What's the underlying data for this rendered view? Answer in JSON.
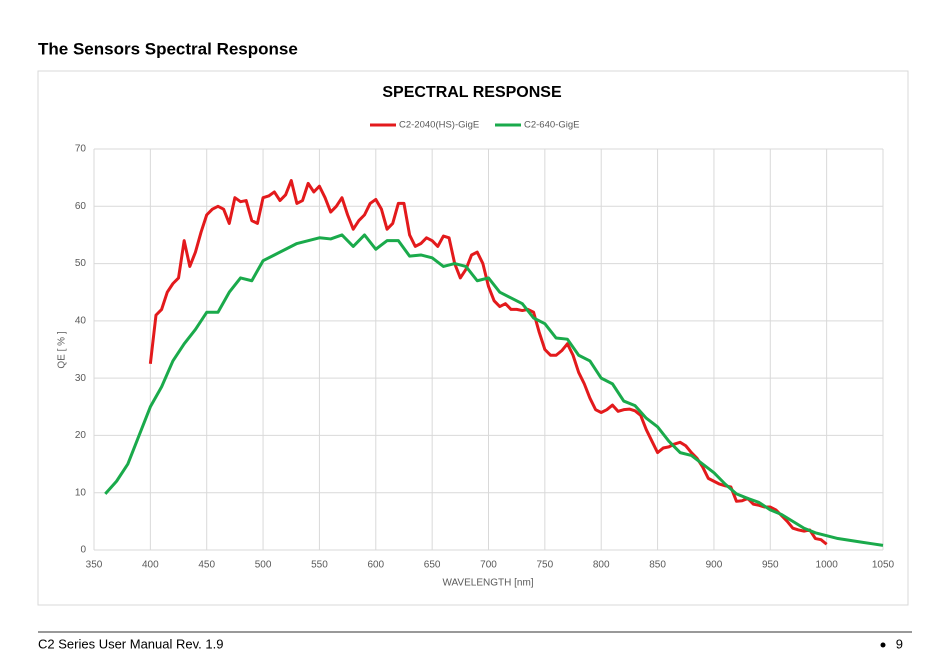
{
  "header": {
    "title": "The Sensors Spectral Response"
  },
  "chart_data": {
    "type": "line",
    "title": "SPECTRAL RESPONSE",
    "x_label": "WAVELENGTH [nm]",
    "y_label": "QE [ % ]",
    "xlim": [
      350,
      1050
    ],
    "xticks": [
      350,
      400,
      450,
      500,
      550,
      600,
      650,
      700,
      750,
      800,
      850,
      900,
      950,
      1000,
      1050
    ],
    "ylim": [
      0,
      70
    ],
    "yticks": [
      0,
      10,
      20,
      30,
      40,
      50,
      60,
      70
    ],
    "grid": true,
    "legend": "top",
    "series": [
      {
        "name": "C2-2040(HS)-GigE",
        "color": "#e31a1c",
        "x": [
          400,
          405,
          410,
          415,
          420,
          425,
          430,
          435,
          440,
          445,
          450,
          455,
          460,
          465,
          470,
          475,
          480,
          485,
          490,
          495,
          500,
          505,
          510,
          515,
          520,
          525,
          530,
          535,
          540,
          545,
          550,
          555,
          560,
          565,
          570,
          575,
          580,
          585,
          590,
          595,
          600,
          605,
          610,
          615,
          620,
          625,
          630,
          635,
          640,
          645,
          650,
          655,
          660,
          665,
          670,
          675,
          680,
          685,
          690,
          695,
          700,
          705,
          710,
          715,
          720,
          725,
          730,
          735,
          740,
          745,
          750,
          755,
          760,
          765,
          770,
          775,
          780,
          785,
          790,
          795,
          800,
          805,
          810,
          815,
          820,
          825,
          830,
          835,
          840,
          845,
          850,
          855,
          860,
          865,
          870,
          875,
          880,
          885,
          890,
          895,
          900,
          905,
          910,
          915,
          920,
          925,
          930,
          935,
          940,
          945,
          950,
          955,
          960,
          965,
          970,
          975,
          980,
          985,
          990,
          995,
          1000
        ],
        "values": [
          32.5,
          41,
          42,
          45,
          46.5,
          47.5,
          54,
          49.5,
          52,
          55.5,
          58.5,
          59.5,
          60,
          59.5,
          57,
          61.5,
          60.8,
          61,
          57.5,
          57,
          61.5,
          61.8,
          62.5,
          61,
          62,
          64.5,
          60.5,
          61,
          64,
          62.5,
          63.5,
          61.5,
          59,
          60,
          61.5,
          58.5,
          56,
          57.5,
          58.5,
          60.5,
          61.2,
          59.5,
          56,
          57,
          60.5,
          60.5,
          55,
          53,
          53.5,
          54.5,
          54,
          53,
          54.8,
          54.5,
          50,
          47.5,
          49,
          51.5,
          52,
          50,
          46,
          43.5,
          42.5,
          43,
          42,
          42,
          41.8,
          42,
          41.5,
          38,
          35,
          34,
          34,
          34.8,
          36,
          34,
          31,
          29,
          26.5,
          24.5,
          24,
          24.5,
          25.3,
          24.2,
          24.5,
          24.6,
          24.3,
          23.5,
          21,
          19,
          17,
          17.8,
          18,
          18.5,
          18.8,
          18.2,
          17,
          16,
          14.5,
          12.5,
          12,
          11.5,
          11.2,
          11,
          8.5,
          8.6,
          9,
          8,
          7.8,
          7.5,
          7.5,
          7,
          6,
          5,
          3.8,
          3.5,
          3.3,
          3.5,
          2,
          1.8,
          1
        ]
      },
      {
        "name": "C2-640-GigE",
        "color": "#1aaa4b",
        "x": [
          360,
          370,
          380,
          390,
          400,
          410,
          420,
          430,
          440,
          450,
          460,
          470,
          480,
          490,
          500,
          510,
          520,
          530,
          540,
          550,
          560,
          570,
          580,
          590,
          600,
          610,
          620,
          630,
          640,
          650,
          660,
          670,
          680,
          690,
          700,
          710,
          720,
          730,
          740,
          750,
          760,
          770,
          780,
          790,
          800,
          810,
          820,
          830,
          840,
          850,
          860,
          870,
          880,
          890,
          900,
          910,
          920,
          930,
          940,
          950,
          960,
          970,
          980,
          990,
          1000,
          1010,
          1020,
          1030,
          1040,
          1050
        ],
        "values": [
          9.8,
          12,
          15,
          20,
          25,
          28.5,
          33,
          36,
          38.5,
          41.5,
          41.5,
          45,
          47.5,
          47,
          50.5,
          51.5,
          52.5,
          53.5,
          54,
          54.5,
          54.3,
          55,
          53,
          55,
          52.5,
          54,
          54,
          51.3,
          51.5,
          51,
          49.5,
          50,
          49.5,
          47,
          47.5,
          45,
          44,
          43,
          40.5,
          39.5,
          37,
          36.8,
          34,
          33,
          30,
          29,
          26,
          25.2,
          23,
          21.5,
          19,
          17,
          16.5,
          15,
          13.5,
          11.5,
          9.8,
          9,
          8.3,
          7,
          6.2,
          5,
          3.8,
          3,
          2.5,
          2,
          1.7,
          1.4,
          1.1,
          0.8
        ]
      }
    ]
  },
  "footer": {
    "text": "C2 Series User Manual Rev. 1.9",
    "page": 9
  }
}
